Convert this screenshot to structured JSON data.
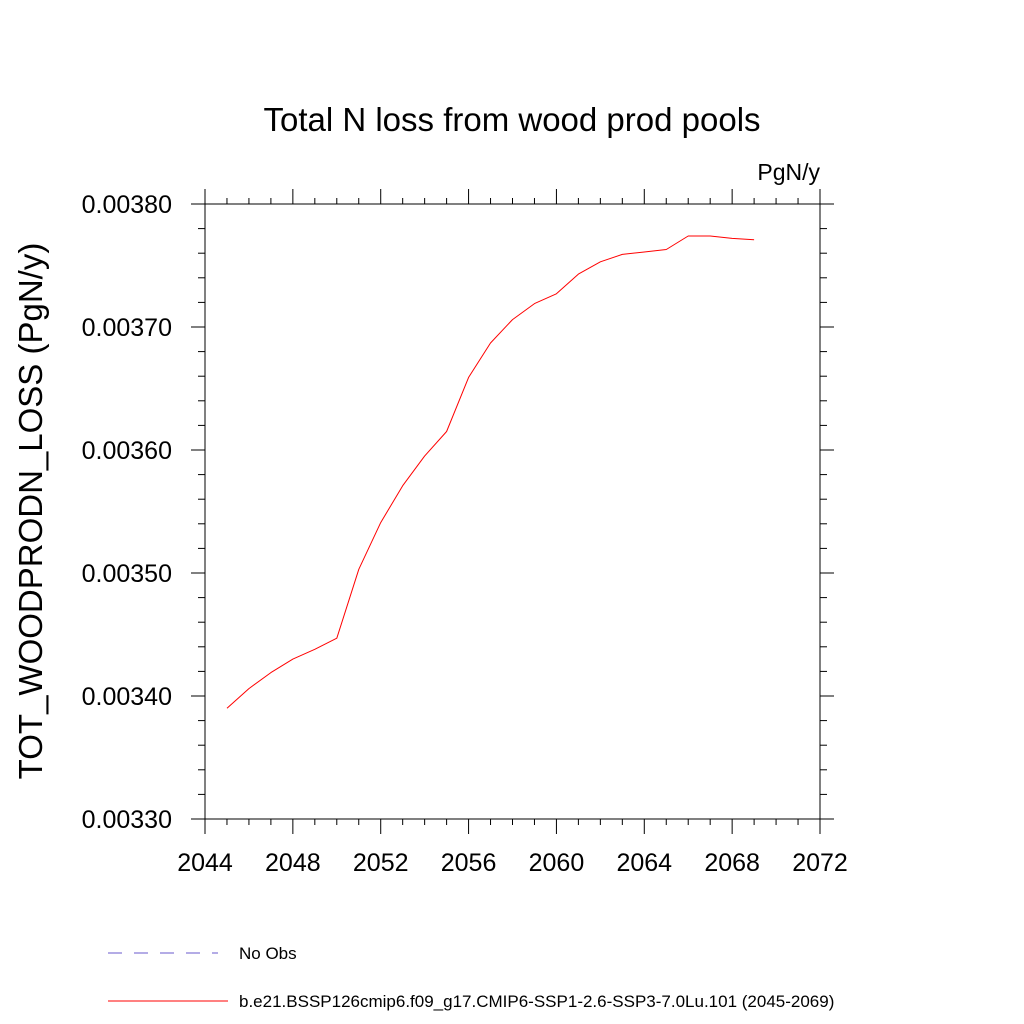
{
  "chart_data": {
    "type": "line",
    "title": "Total N loss from wood prod pools",
    "units_label": "PgN/y",
    "ylabel": "TOT_WOODPRODN_LOSS  (PgN/y)",
    "xlabel": "",
    "xlim": [
      2044,
      2072
    ],
    "ylim": [
      0.0033,
      0.0038
    ],
    "x_ticks": [
      2044,
      2048,
      2052,
      2056,
      2060,
      2064,
      2068,
      2072
    ],
    "x_tick_labels": [
      "2044",
      "2048",
      "2052",
      "2056",
      "2060",
      "2064",
      "2068",
      "2072"
    ],
    "y_ticks": [
      0.0033,
      0.0034,
      0.0035,
      0.0036,
      0.0037,
      0.0038
    ],
    "y_tick_labels": [
      "0.00330",
      "0.00340",
      "0.00350",
      "0.00360",
      "0.00370",
      "0.00380"
    ],
    "grid": false,
    "legend_position": "bottom",
    "series": [
      {
        "name": "b.e21.BSSP126cmip6.f09_g17.CMIP6-SSP1-2.6-SSP3-7.0Lu.101 (2045-2069)",
        "color": "#ff0000",
        "style": "solid",
        "x": [
          2045,
          2046,
          2047,
          2048,
          2049,
          2050,
          2051,
          2052,
          2053,
          2054,
          2055,
          2056,
          2057,
          2058,
          2059,
          2060,
          2061,
          2062,
          2063,
          2064,
          2065,
          2066,
          2067,
          2068,
          2069
        ],
        "y": [
          0.00339,
          0.003406,
          0.003419,
          0.00343,
          0.003438,
          0.003447,
          0.003503,
          0.003541,
          0.003571,
          0.003595,
          0.003615,
          0.003659,
          0.003687,
          0.003706,
          0.003719,
          0.003727,
          0.003743,
          0.003753,
          0.003759,
          0.003761,
          0.003763,
          0.003774,
          0.003774,
          0.003772,
          0.003771
        ]
      },
      {
        "name": "No Obs",
        "color": "#6a5acd",
        "style": "dashed",
        "x": [],
        "y": []
      }
    ]
  }
}
